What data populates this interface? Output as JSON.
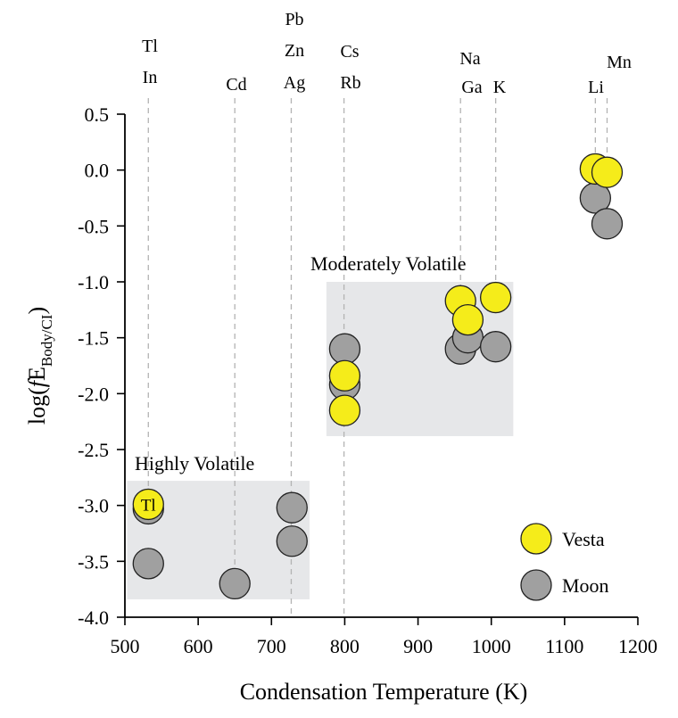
{
  "chart_data": {
    "type": "scatter",
    "title": "",
    "xlabel": "Condensation Temperature (K)",
    "ylabel_prefix": "log(",
    "ylabel_f": "f",
    "ylabel_E": "E",
    "ylabel_sub": "Body/CI",
    "ylabel_suffix": ")",
    "xlim": [
      500,
      1200
    ],
    "ylim": [
      -4.0,
      0.5
    ],
    "xticks": [
      500,
      600,
      700,
      800,
      900,
      1000,
      1100,
      1200
    ],
    "yticks": [
      0.5,
      0.0,
      -0.5,
      -1.0,
      -1.5,
      -2.0,
      -2.5,
      -3.0,
      -3.5,
      -4.0
    ],
    "ytick_labels": [
      "0.5",
      "0.0",
      "-0.5",
      "-1.0",
      "-1.5",
      "-2.0",
      "-2.5",
      "-3.0",
      "-3.5",
      "-4.0"
    ],
    "grid": false,
    "legend_position": "bottom-right",
    "series": [
      {
        "name": "Moon",
        "color": "#a0a0a0",
        "points": [
          {
            "x": 532,
            "y": -3.03
          },
          {
            "x": 532,
            "y": -3.52
          },
          {
            "x": 650,
            "y": -3.7
          },
          {
            "x": 728,
            "y": -3.02
          },
          {
            "x": 728,
            "y": -3.32
          },
          {
            "x": 800,
            "y": -1.6
          },
          {
            "x": 800,
            "y": -1.92
          },
          {
            "x": 958,
            "y": -1.6
          },
          {
            "x": 968,
            "y": -1.5
          },
          {
            "x": 1006,
            "y": -1.58
          },
          {
            "x": 1142,
            "y": -0.25
          },
          {
            "x": 1158,
            "y": -0.48
          }
        ]
      },
      {
        "name": "Vesta",
        "color": "#f5ec1a",
        "points": [
          {
            "x": 532,
            "y": -2.99,
            "label": "Tl"
          },
          {
            "x": 800,
            "y": -1.84
          },
          {
            "x": 800,
            "y": -2.15
          },
          {
            "x": 958,
            "y": -1.17
          },
          {
            "x": 968,
            "y": -1.34
          },
          {
            "x": 1006,
            "y": -1.14
          },
          {
            "x": 1142,
            "y": 0.01
          },
          {
            "x": 1158,
            "y": -0.02
          }
        ]
      }
    ],
    "regions": [
      {
        "label": "Highly Volatile",
        "x": [
          503,
          752
        ],
        "y": [
          -3.84,
          -2.78
        ]
      },
      {
        "label": "Moderately Volatile",
        "x": [
          775,
          1030
        ],
        "y": [
          -2.38,
          -1.0
        ]
      }
    ],
    "element_markers": [
      {
        "lines": [
          "Tl",
          "In"
        ],
        "x": 532
      },
      {
        "lines": [
          "Cd"
        ],
        "x": 650
      },
      {
        "lines": [
          "Pb",
          "Zn",
          "Ag"
        ],
        "x": 727
      },
      {
        "lines": [
          "Cs",
          "Rb"
        ],
        "x": 799
      },
      {
        "lines": [
          "Na",
          "Ga",
          "K"
        ],
        "x": 958
      },
      {
        "lines": [
          "K"
        ],
        "x": 1006
      },
      {
        "lines": [
          "Li"
        ],
        "x": 1142
      },
      {
        "lines": [
          "Mn"
        ],
        "x": 1158
      }
    ],
    "element_label_text": {
      "tl_in": [
        "Tl",
        "In"
      ],
      "cd": "Cd",
      "pb_zn_ag": [
        "Pb",
        "Zn",
        "Ag"
      ],
      "cs_rb": [
        "Cs",
        "Rb"
      ],
      "na": "Na",
      "ga": "Ga",
      "k": "K",
      "li": "Li",
      "mn": "Mn"
    }
  }
}
